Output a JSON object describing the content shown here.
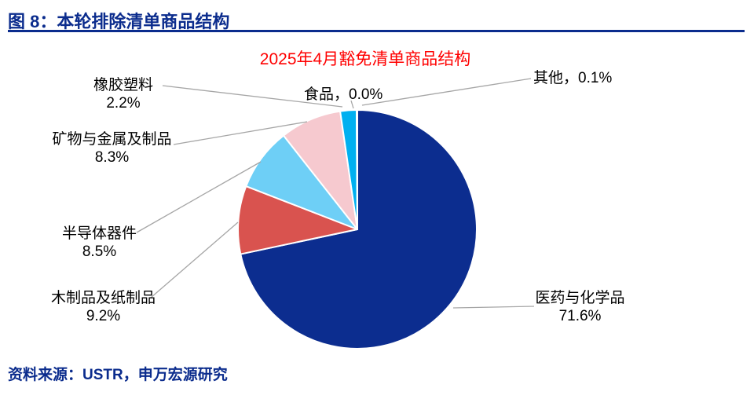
{
  "figure_header": {
    "caption": "图 8：本轮排除清单商品结构"
  },
  "source_note": {
    "text": "资料来源：USTR，申万宏源研究"
  },
  "theme": {
    "caption_color": "#0b2c8d",
    "divider_color": "#0b2c8d",
    "title_color": "#ff0000",
    "leader_line_color": "#a6a6a6",
    "label_color": "#000000",
    "slice_border_color": "#ffffff"
  },
  "chart_data": {
    "type": "pie",
    "title": "2025年4月豁免清单商品结构",
    "unit": "%",
    "categories": [
      "医药与化学品",
      "木制品及纸制品",
      "半导体器件",
      "矿物与金属及制品",
      "橡胶塑料",
      "食品",
      "其他"
    ],
    "values": [
      71.6,
      9.2,
      8.5,
      8.3,
      2.2,
      0.0,
      0.1
    ],
    "ids": [
      "pharma-chemicals",
      "wood-paper",
      "semiconductors",
      "minerals-metals",
      "rubber-plastics",
      "food",
      "other"
    ],
    "colors": [
      "#0c2d8f",
      "#d9534f",
      "#6ecff6",
      "#f6c9cf",
      "#00b0f0",
      "#ffffff",
      "#bfbfbf"
    ],
    "start_angle_deg": 0,
    "direction": "clockwise",
    "legend": "none",
    "callouts": {
      "other": {
        "text": "其他，0.1%"
      },
      "food": {
        "text": "食品，0.0%"
      },
      "rubber": {
        "name": "橡胶塑料",
        "value": "2.2%"
      },
      "minerals": {
        "name": "矿物与金属及制品",
        "value": "8.3%"
      },
      "semiconductors": {
        "name": "半导体器件",
        "value": "8.5%"
      },
      "wood_paper": {
        "name": "木制品及纸制品",
        "value": "9.2%"
      },
      "pharma_chem": {
        "name": "医药与化学品",
        "value": "71.6%"
      }
    }
  }
}
